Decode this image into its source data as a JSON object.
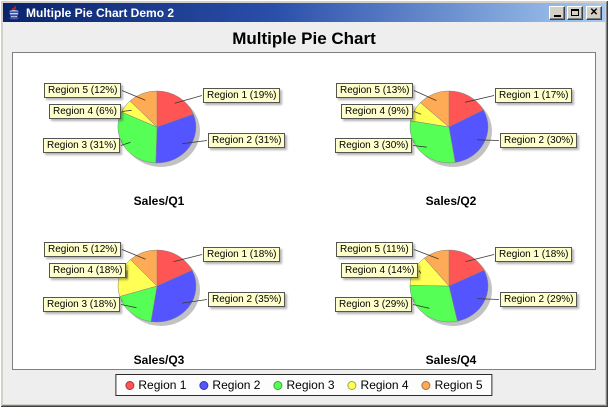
{
  "window": {
    "title": "Multiple Pie Chart Demo 2",
    "icons": {
      "app": "java-cup-icon",
      "minimize": "minimize-icon",
      "maximize": "maximize-icon",
      "close": "close-icon"
    },
    "close_glyph": "✕"
  },
  "chart": {
    "title": "Multiple Pie Chart",
    "legend": [
      {
        "label": "Region 1",
        "color": "#FF5555"
      },
      {
        "label": "Region 2",
        "color": "#5555FF"
      },
      {
        "label": "Region 3",
        "color": "#55FF55"
      },
      {
        "label": "Region 4",
        "color": "#FFFF55"
      },
      {
        "label": "Region 5",
        "color": "#FFAA55"
      }
    ]
  },
  "chart_data": [
    {
      "type": "pie",
      "title": "Sales/Q1",
      "categories": [
        "Region 1",
        "Region 2",
        "Region 3",
        "Region 4",
        "Region 5"
      ],
      "values": [
        19,
        31,
        31,
        6,
        12
      ],
      "labels": [
        "Region 1 (19%)",
        "Region 2 (31%)",
        "Region 3 (31%)",
        "Region 4 (6%)",
        "Region 5 (12%)"
      ],
      "colors": [
        "#FF5555",
        "#5555FF",
        "#55FF55",
        "#FFFF55",
        "#FFAA55"
      ]
    },
    {
      "type": "pie",
      "title": "Sales/Q2",
      "categories": [
        "Region 1",
        "Region 2",
        "Region 3",
        "Region 4",
        "Region 5"
      ],
      "values": [
        17,
        30,
        30,
        9,
        13
      ],
      "labels": [
        "Region 1 (17%)",
        "Region 2 (30%)",
        "Region 3 (30%)",
        "Region 4 (9%)",
        "Region 5 (13%)"
      ],
      "colors": [
        "#FF5555",
        "#5555FF",
        "#55FF55",
        "#FFFF55",
        "#FFAA55"
      ]
    },
    {
      "type": "pie",
      "title": "Sales/Q3",
      "categories": [
        "Region 1",
        "Region 2",
        "Region 3",
        "Region 4",
        "Region 5"
      ],
      "values": [
        18,
        35,
        18,
        18,
        12
      ],
      "labels": [
        "Region 1 (18%)",
        "Region 2 (35%)",
        "Region 3 (18%)",
        "Region 4 (18%)",
        "Region 5 (12%)"
      ],
      "colors": [
        "#FF5555",
        "#5555FF",
        "#55FF55",
        "#FFFF55",
        "#FFAA55"
      ]
    },
    {
      "type": "pie",
      "title": "Sales/Q4",
      "categories": [
        "Region 1",
        "Region 2",
        "Region 3",
        "Region 4",
        "Region 5"
      ],
      "values": [
        18,
        29,
        29,
        14,
        11
      ],
      "labels": [
        "Region 1 (18%)",
        "Region 2 (29%)",
        "Region 3 (29%)",
        "Region 4 (14%)",
        "Region 5 (11%)"
      ],
      "colors": [
        "#FF5555",
        "#5555FF",
        "#55FF55",
        "#FFFF55",
        "#FFAA55"
      ]
    }
  ]
}
